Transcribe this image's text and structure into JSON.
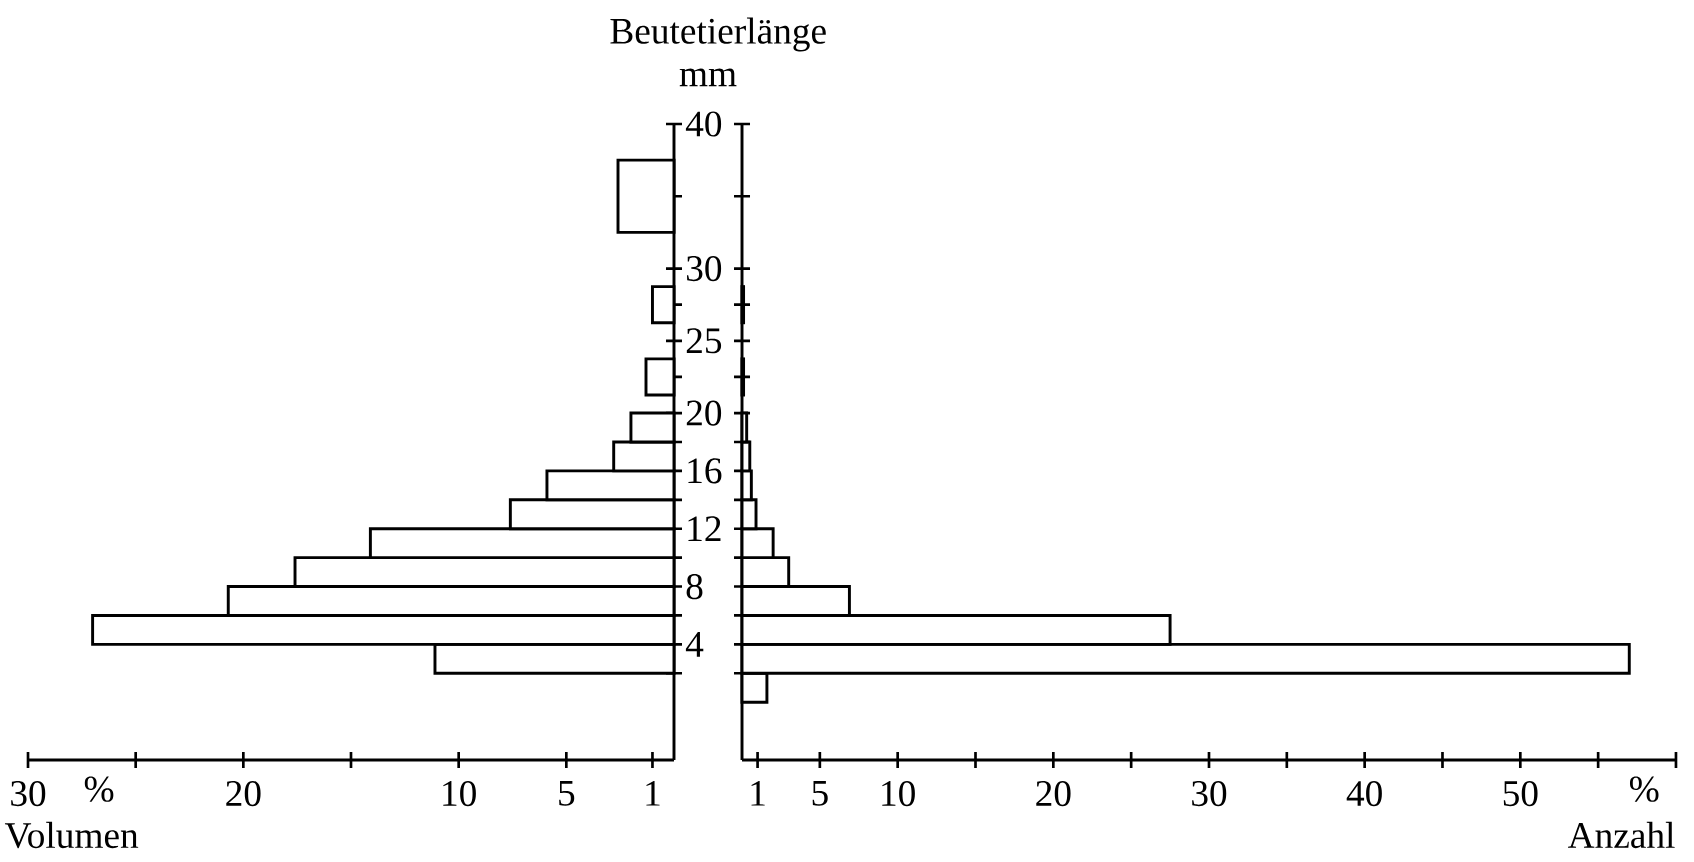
{
  "chart_data": [
    {
      "type": "histogram",
      "orientation": "horizontal",
      "ylabel": "Beutetierlänge mm",
      "xlabel": "Volumen",
      "annotations": [
        "%"
      ],
      "color": "#ffffff",
      "bins": [
        2,
        4,
        6,
        8,
        10,
        12,
        14,
        16,
        18,
        20,
        21.25,
        23.75,
        26.25,
        28.75,
        32.5,
        37.5
      ],
      "values": [
        11.1,
        27,
        20.7,
        17.6,
        14.1,
        7.6,
        5.9,
        2.8,
        2.0,
        0,
        1.3,
        0,
        1.0,
        0,
        2.6
      ],
      "xlim": [
        30,
        0
      ],
      "xticks": [
        1,
        5,
        10,
        {
          "value": 15,
          "label": null
        },
        20,
        {
          "value": 25,
          "label": null
        },
        30
      ],
      "ylim": [
        -4,
        40
      ],
      "yticks": [
        {
          "value": 2,
          "label": null
        },
        4,
        {
          "value": 6,
          "label": null
        },
        8,
        {
          "value": 10,
          "label": null
        },
        12,
        {
          "value": 14,
          "label": null
        },
        16,
        {
          "value": 18,
          "label": null
        },
        20,
        {
          "value": 22.5,
          "label": null
        },
        25,
        {
          "value": 27.5,
          "label": null
        },
        30,
        {
          "value": 35,
          "label": null
        },
        40
      ]
    },
    {
      "type": "histogram",
      "orientation": "horizontal",
      "xlabel": "Anzahl",
      "annotations": [
        "%"
      ],
      "color": "#ffffff",
      "tick_labels": "x",
      "bins": [
        0,
        2,
        4,
        6,
        8,
        10,
        12,
        14,
        16,
        18,
        20,
        21.25,
        23.75,
        26.25,
        28.75
      ],
      "values": [
        1.6,
        57,
        27.5,
        6.9,
        3.0,
        2.0,
        0.9,
        0.6,
        0.5,
        0.3,
        0,
        0.1,
        0,
        0.1
      ],
      "xlim": [
        0,
        60
      ],
      "xticks": [
        1,
        5,
        10,
        {
          "value": 15,
          "label": null
        },
        20,
        {
          "value": 25,
          "label": null
        },
        30,
        {
          "value": 35,
          "label": null
        },
        40,
        {
          "value": 45,
          "label": null
        },
        50,
        {
          "value": 55,
          "label": null
        },
        {
          "value": 60,
          "label": null
        }
      ],
      "ylim": [
        -4,
        40
      ],
      "yticks": [
        {
          "value": 2,
          "label": null
        },
        4,
        {
          "value": 6,
          "label": null
        },
        8,
        {
          "value": 10,
          "label": null
        },
        12,
        {
          "value": 14,
          "label": null
        },
        16,
        {
          "value": 18,
          "label": null
        },
        20,
        {
          "value": 22.5,
          "label": null
        },
        25,
        {
          "value": 27.5,
          "label": null
        },
        30,
        {
          "value": 35,
          "label": null
        },
        40
      ]
    }
  ]
}
